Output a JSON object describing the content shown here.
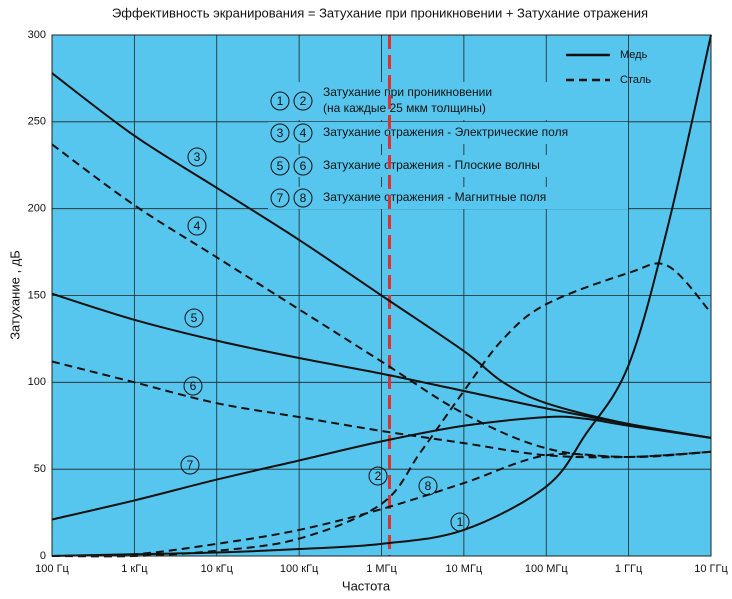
{
  "chart_data": {
    "type": "line",
    "title": "Эффективность экранирования = Затухание при проникновении + Затухание отражения",
    "xlabel": "Частота",
    "ylabel": "Затухание , дБ",
    "log_x": true,
    "grid": true,
    "background": "#56c6ee",
    "line_color": "#111111",
    "xlim": [
      100,
      10000000000
    ],
    "xticks": [
      {
        "value": 100,
        "label": "100 Гц"
      },
      {
        "value": 1000,
        "label": "1 кГц"
      },
      {
        "value": 10000,
        "label": "10 кГц"
      },
      {
        "value": 100000,
        "label": "100 кГц"
      },
      {
        "value": 1000000,
        "label": "1 МГц"
      },
      {
        "value": 10000000,
        "label": "10 МГц"
      },
      {
        "value": 100000000,
        "label": "100 МГц"
      },
      {
        "value": 1000000000,
        "label": "1 ГГц"
      },
      {
        "value": 10000000000,
        "label": "10 ГГц"
      }
    ],
    "ylim": [
      0,
      300
    ],
    "yticks": [
      0,
      50,
      100,
      150,
      200,
      250,
      300
    ],
    "reference_line": {
      "x": 1250000,
      "color": "#e0302f"
    },
    "legend": [
      {
        "name": "Медь",
        "dash": false
      },
      {
        "name": "Сталь",
        "dash": true
      }
    ],
    "key": [
      {
        "labels": [
          "1",
          "2"
        ],
        "lines": [
          "Затухание при проникновении",
          "(на каждые 25 мкм толщины)"
        ]
      },
      {
        "labels": [
          "3",
          "4"
        ],
        "lines": [
          "Затухание отражения - Электрические поля"
        ]
      },
      {
        "labels": [
          "5",
          "6"
        ],
        "lines": [
          "Затухание отражения - Плоские волны"
        ]
      },
      {
        "labels": [
          "7",
          "8"
        ],
        "lines": [
          "Затухание отражения - Магнитные поля"
        ]
      }
    ],
    "series": [
      {
        "label": "1",
        "dash": false,
        "x": [
          100,
          1000,
          10000,
          100000,
          1000000,
          10000000,
          100000000,
          300000000,
          1000000000,
          3000000000,
          10000000000
        ],
        "values": [
          0,
          1,
          2,
          4,
          7,
          15,
          40,
          70,
          110,
          190,
          300
        ]
      },
      {
        "label": "2",
        "dash": true,
        "x": [
          100,
          1000,
          10000,
          100000,
          1000000,
          3000000,
          10000000,
          30000000,
          100000000,
          1000000000,
          3000000000,
          10000000000
        ],
        "values": [
          0,
          0,
          3,
          10,
          30,
          60,
          95,
          125,
          145,
          163,
          167,
          140
        ]
      },
      {
        "label": "3",
        "dash": false,
        "x": [
          100,
          1000,
          10000,
          100000,
          1000000,
          10000000,
          30000000,
          100000000,
          1000000000,
          10000000000
        ],
        "values": [
          278,
          242,
          212,
          182,
          150,
          118,
          100,
          88,
          76,
          68
        ]
      },
      {
        "label": "4",
        "dash": true,
        "x": [
          100,
          1000,
          10000,
          100000,
          1000000,
          10000000,
          100000000,
          1000000000,
          10000000000
        ],
        "values": [
          237,
          202,
          172,
          142,
          112,
          82,
          62,
          57,
          60
        ]
      },
      {
        "label": "5",
        "dash": false,
        "x": [
          100,
          1000,
          10000,
          100000,
          1000000,
          10000000,
          100000000,
          1000000000,
          10000000000
        ],
        "values": [
          151,
          136,
          124,
          114,
          105,
          95,
          85,
          76,
          68
        ]
      },
      {
        "label": "6",
        "dash": true,
        "x": [
          100,
          1000,
          10000,
          100000,
          1000000,
          10000000,
          100000000,
          1000000000,
          10000000000
        ],
        "values": [
          112,
          100,
          88,
          80,
          72,
          65,
          58,
          57,
          60
        ]
      },
      {
        "label": "7",
        "dash": false,
        "x": [
          100,
          1000,
          10000,
          100000,
          1000000,
          10000000,
          100000000,
          300000000,
          1000000000,
          10000000000
        ],
        "values": [
          21,
          32,
          44,
          55,
          66,
          75,
          80,
          79,
          75,
          68
        ]
      },
      {
        "label": "8",
        "dash": true,
        "x": [
          100,
          1000,
          10000,
          100000,
          1000000,
          10000000,
          100000000,
          1000000000,
          10000000000
        ],
        "values": [
          0,
          1,
          7,
          15,
          27,
          42,
          58,
          57,
          60
        ]
      }
    ]
  }
}
